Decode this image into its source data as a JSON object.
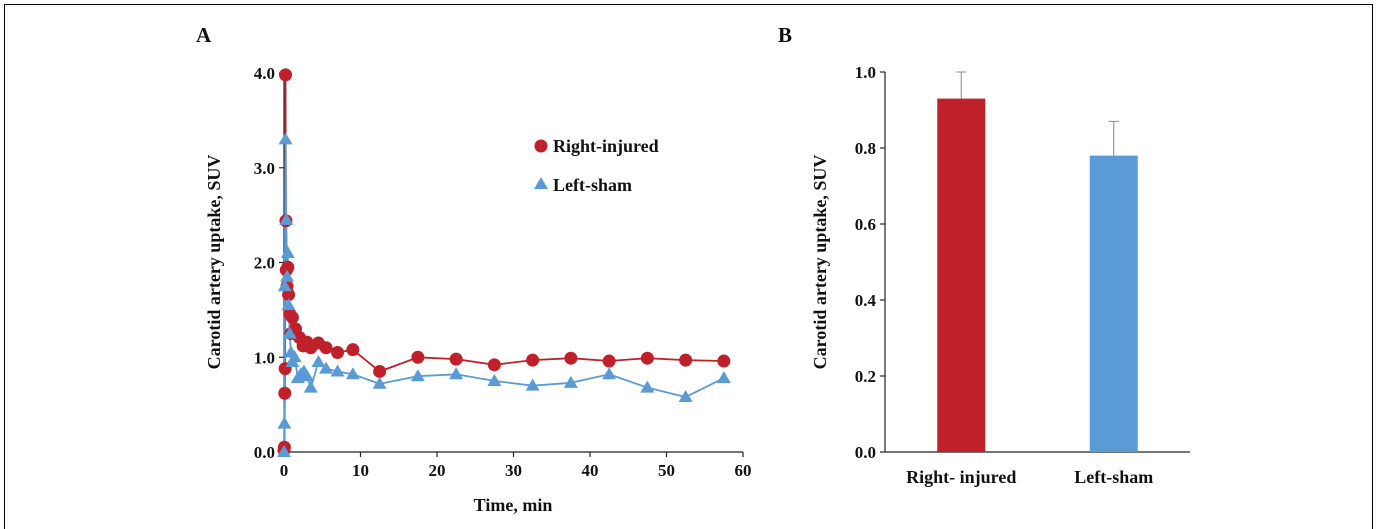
{
  "panels": {
    "a_label": "A",
    "b_label": "B"
  },
  "chart_data": [
    {
      "type": "scatter",
      "title": "",
      "xlabel": "Time, min",
      "ylabel": "Carotid artery uptake, SUV",
      "xlim": [
        0,
        60
      ],
      "ylim": [
        0,
        4.0
      ],
      "x_ticks": [
        "0",
        "10",
        "20",
        "30",
        "40",
        "50",
        "60"
      ],
      "y_ticks": [
        "0.0",
        "1.0",
        "2.0",
        "3.0",
        "4.0"
      ],
      "legend_position": "top-right",
      "series": [
        {
          "name": "Right-injured",
          "color": "#c0202a",
          "marker": "circle",
          "x": [
            0,
            0.05,
            0.1,
            0.15,
            0.2,
            0.25,
            0.3,
            0.4,
            0.5,
            0.6,
            0.75,
            0.9,
            1.1,
            1.5,
            2.0,
            2.5,
            3.0,
            3.5,
            4.5,
            5.5,
            7,
            9,
            12.5,
            17.5,
            22.5,
            27.5,
            32.5,
            37.5,
            42.5,
            47.5,
            52.5,
            57.5
          ],
          "y": [
            0.02,
            0.05,
            0.62,
            0.88,
            3.98,
            2.44,
            1.92,
            1.75,
            1.95,
            1.66,
            1.46,
            1.25,
            1.42,
            1.3,
            1.21,
            1.12,
            1.16,
            1.1,
            1.15,
            1.1,
            1.05,
            1.08,
            0.85,
            1.0,
            0.98,
            0.92,
            0.97,
            0.99,
            0.96,
            0.99,
            0.97,
            0.96
          ]
        },
        {
          "name": "Left-sham",
          "color": "#5b9bd5",
          "marker": "triangle",
          "x": [
            0,
            0.05,
            0.1,
            0.2,
            0.3,
            0.4,
            0.5,
            0.6,
            0.75,
            0.9,
            1.1,
            1.4,
            1.8,
            2.2,
            2.6,
            3.0,
            3.5,
            4.5,
            5.5,
            7,
            9,
            12.5,
            17.5,
            22.5,
            27.5,
            32.5,
            37.5,
            42.5,
            47.5,
            52.5,
            57.5
          ],
          "y": [
            0.0,
            0.3,
            1.75,
            3.3,
            2.45,
            1.85,
            2.1,
            1.55,
            1.25,
            1.05,
            0.95,
            1.0,
            0.78,
            0.82,
            0.85,
            0.8,
            0.68,
            0.95,
            0.88,
            0.85,
            0.82,
            0.72,
            0.8,
            0.82,
            0.75,
            0.7,
            0.73,
            0.82,
            0.68,
            0.58,
            0.78
          ]
        }
      ]
    },
    {
      "type": "bar",
      "title": "",
      "xlabel": "",
      "ylabel": "Carotid artery uptake, SUV",
      "ylim": [
        0,
        1.0
      ],
      "y_ticks": [
        "0.0",
        "0.2",
        "0.4",
        "0.6",
        "0.8",
        "1.0"
      ],
      "categories": [
        "Right- injured",
        "Left-sham"
      ],
      "values": [
        0.93,
        0.78
      ],
      "errors": [
        0.07,
        0.09
      ],
      "colors": [
        "#c0202a",
        "#5b9bd5"
      ]
    }
  ]
}
